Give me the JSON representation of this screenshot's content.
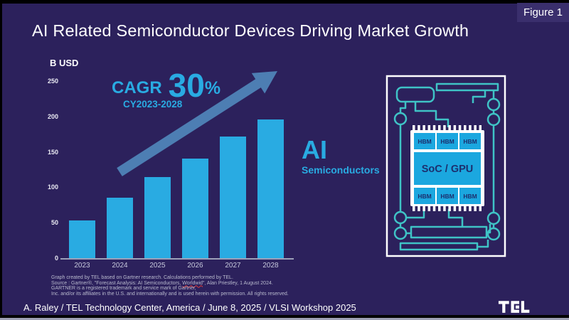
{
  "slide": {
    "figure_label": "Figure 1",
    "title": "AI Related Semiconductor Devices Driving Market Growth"
  },
  "chart_data": {
    "type": "bar",
    "title": "",
    "ylabel": "B USD",
    "xlabel": "",
    "categories": [
      "2023",
      "2024",
      "2025",
      "2026",
      "2027",
      "2028"
    ],
    "values": [
      53,
      85,
      114,
      141,
      172,
      196
    ],
    "ylim": [
      0,
      250
    ],
    "yticks": [
      0,
      50,
      100,
      150,
      200,
      250
    ],
    "grid": false,
    "legend": "none",
    "bar_color": "#29ABE2",
    "annotations": {
      "cagr_label": "CAGR",
      "cagr_value": "30",
      "cagr_percent": "%",
      "cagr_period": "CY2023-2028",
      "growth_arrow": "upward-diagonal-arrow",
      "series_label": "AI",
      "series_sublabel": "Semiconductors"
    }
  },
  "chip_diagram": {
    "soc_label": "SoC / GPU",
    "hbm_label": "HBM",
    "hbm_top_count": 3,
    "hbm_bottom_count": 3,
    "block_color": "#1BA7DF",
    "trace_color": "#3FC3C6",
    "board_outline_color": "#FFFFFF"
  },
  "footnotes": {
    "line1": "Graph created by TEL based on Gartner research. Calculations performed by TEL.",
    "line2_pre": "Source : Gartner®, \"Forecast Analysis: AI Semiconductors, ",
    "line2_word": "Worldwid",
    "line2_post": "\", Alan Priestley, 1 August 2024.",
    "line3": "GARTNER is a registered trademark and service mark of Gartner,",
    "line4": "Inc. and/or its affiliates in the U.S. and internationally and is used herein with permission. All rights reserved."
  },
  "footer": {
    "credit": "A. Raley / TEL Technology Center, America / June 8, 2025 / VLSI Workshop 2025",
    "logo_text": "TEL"
  },
  "colors": {
    "slide_background": "#2C215C",
    "badge_background": "#3A2F6D",
    "accent_cyan": "#29ABE2",
    "arrow_blue": "#4D7EB3",
    "trace_teal": "#3FC3C6",
    "text_white": "#FFFFFF"
  }
}
